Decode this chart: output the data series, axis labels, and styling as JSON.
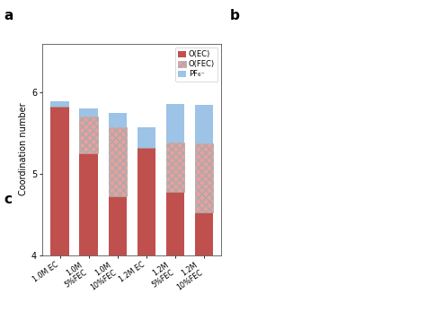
{
  "categories": [
    "1.0M EC",
    "1.0M\n5%FEC",
    "1.0M\n10%FEC",
    "1.2M EC",
    "1.2M\n5%FEC",
    "1.2M\n10%FEC"
  ],
  "oec_values": [
    5.82,
    5.25,
    4.72,
    5.32,
    4.78,
    4.52
  ],
  "ofec_values": [
    0.0,
    0.45,
    0.85,
    0.0,
    0.6,
    0.85
  ],
  "pf6_values": [
    0.07,
    0.1,
    0.18,
    0.25,
    0.48,
    0.48
  ],
  "oec_color": "#c0504d",
  "ofec_color": "#e8a09e",
  "pf6_color": "#9dc3e6",
  "ylabel": "Coordination number",
  "ylim_min": 4.0,
  "ylim_max": 6.6,
  "yticks": [
    4,
    5,
    6
  ],
  "panel_label": "a",
  "legend_labels": [
    "O(EC)",
    "O(FEC)",
    "PF₆⁻"
  ],
  "bar_width": 0.65,
  "edge_color": "#999999",
  "background_color": "#ffffff"
}
